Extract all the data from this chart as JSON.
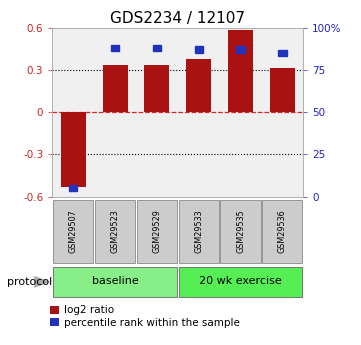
{
  "title": "GDS2234 / 12107",
  "samples": [
    "GSM29507",
    "GSM29523",
    "GSM29529",
    "GSM29533",
    "GSM29535",
    "GSM29536"
  ],
  "log2_ratio": [
    -0.53,
    0.335,
    0.335,
    0.375,
    0.585,
    0.31
  ],
  "percentile_rank": [
    5.0,
    88.0,
    88.0,
    87.0,
    87.0,
    85.0
  ],
  "ylim_left": [
    -0.6,
    0.6
  ],
  "ylim_right": [
    0,
    100
  ],
  "yticks_left": [
    -0.6,
    -0.3,
    0.0,
    0.3,
    0.6
  ],
  "yticks_right": [
    0,
    25,
    50,
    75,
    100
  ],
  "ytick_labels_left": [
    "-0.6",
    "-0.3",
    "0",
    "0.3",
    "0.6"
  ],
  "ytick_labels_right": [
    "0",
    "25",
    "50",
    "75",
    "100%"
  ],
  "hlines_dotted": [
    -0.3,
    0.3
  ],
  "hline_dashed_red": 0.0,
  "bar_color_red": "#aa1111",
  "bar_color_blue": "#2233bb",
  "bar_width": 0.6,
  "protocol_groups": [
    {
      "label": "baseline",
      "samples_idx": [
        0,
        1,
        2
      ],
      "color": "#88ee88"
    },
    {
      "label": "20 wk exercise",
      "samples_idx": [
        3,
        4,
        5
      ],
      "color": "#55ee55"
    }
  ],
  "protocol_label": "protocol",
  "legend_red_label": "log2 ratio",
  "legend_blue_label": "percentile rank within the sample",
  "bg_color": "#ffffff",
  "plot_bg_color": "#f0f0f0",
  "tick_label_color_left": "#cc2222",
  "tick_label_color_right": "#2222cc",
  "title_fontsize": 11,
  "axis_fontsize": 7.5,
  "legend_fontsize": 7.5,
  "sample_box_color": "#cccccc",
  "sample_box_edge": "#888888"
}
